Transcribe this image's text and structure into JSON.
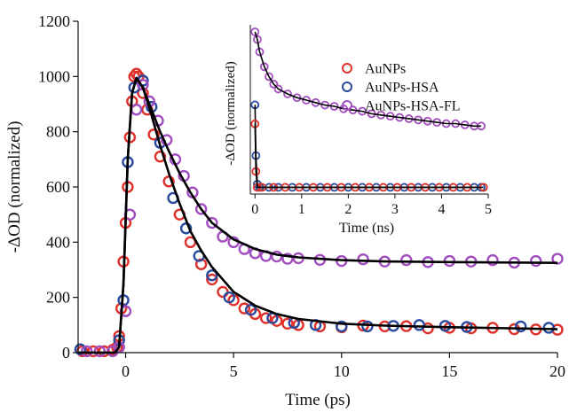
{
  "chart_data": [
    {
      "type": "scatter",
      "xlabel": "Time (ps)",
      "ylabel": "-ΔOD (normalized)",
      "xlim": [
        -2.2,
        20
      ],
      "ylim": [
        0,
        1200
      ],
      "x_ticks": [
        0,
        5,
        10,
        15,
        20
      ],
      "y_ticks": [
        0,
        200,
        400,
        600,
        800,
        1000,
        1200
      ],
      "grid": false,
      "series": [
        {
          "name": "AuNPs",
          "color": "#e0302a",
          "marker": "open-circle",
          "x": [
            -2.0,
            -1.5,
            -1.0,
            -0.6,
            -0.4,
            -0.3,
            -0.2,
            -0.1,
            0.0,
            0.1,
            0.2,
            0.3,
            0.4,
            0.5,
            0.6,
            0.8,
            1.0,
            1.3,
            1.6,
            2.0,
            2.5,
            3.0,
            3.5,
            4.0,
            4.5,
            5.0,
            5.5,
            6.0,
            6.5,
            7.0,
            7.5,
            8.0,
            9.0,
            10.0,
            11.0,
            12.0,
            13.0,
            14.0,
            15.0,
            16.0,
            17.0,
            18.0,
            19.0,
            20.0
          ],
          "y": [
            5,
            5,
            5,
            10,
            20,
            60,
            160,
            330,
            470,
            600,
            780,
            910,
            1000,
            1010,
            1000,
            940,
            880,
            790,
            710,
            620,
            500,
            400,
            320,
            265,
            220,
            190,
            160,
            140,
            125,
            115,
            105,
            100,
            95,
            92,
            98,
            95,
            96,
            88,
            90,
            88,
            90,
            85,
            84,
            83
          ]
        },
        {
          "name": "AuNPs-HSA",
          "color": "#2a4a9e",
          "marker": "open-circle",
          "x": [
            -2.1,
            -0.3,
            -0.1,
            0.1,
            0.4,
            0.8,
            1.2,
            1.6,
            2.2,
            2.8,
            3.4,
            4.0,
            4.8,
            5.8,
            6.8,
            7.8,
            8.8,
            10.0,
            11.2,
            12.4,
            13.6,
            14.8,
            15.8,
            18.3,
            19.6
          ],
          "y": [
            12,
            45,
            190,
            690,
            960,
            985,
            890,
            760,
            560,
            450,
            350,
            280,
            200,
            155,
            125,
            108,
            100,
            95,
            95,
            97,
            100,
            97,
            93,
            95,
            90
          ]
        },
        {
          "name": "AuNPs-HSA-FL",
          "color": "#a24dbf",
          "marker": "open-circle",
          "x": [
            -1.8,
            -1.2,
            -0.6,
            -0.3,
            0.0,
            0.2,
            0.5,
            0.8,
            1.1,
            1.5,
            1.9,
            2.3,
            2.7,
            3.1,
            3.5,
            4.0,
            4.5,
            5.0,
            5.5,
            6.0,
            6.5,
            7.0,
            7.5,
            8.0,
            9.0,
            10.0,
            11.0,
            12.0,
            13.0,
            14.0,
            15.0,
            16.0,
            17.0,
            18.0,
            19.0,
            20.0
          ],
          "y": [
            5,
            5,
            5,
            20,
            150,
            500,
            880,
            970,
            910,
            840,
            770,
            700,
            640,
            580,
            520,
            470,
            420,
            400,
            375,
            360,
            350,
            348,
            340,
            342,
            336,
            332,
            338,
            330,
            335,
            328,
            332,
            330,
            335,
            326,
            332,
            340
          ]
        },
        {
          "name": "fit",
          "color": "#000000",
          "line": true,
          "x": [
            -2.2,
            -0.5,
            -0.3,
            -0.1,
            0.1,
            0.3,
            0.5,
            0.8,
            1.2,
            1.6,
            2.0,
            2.5,
            3.0,
            3.5,
            4.0,
            5.0,
            6.0,
            7.0,
            8.0,
            10.0,
            12.0,
            15.0,
            20.0
          ],
          "y": [
            0,
            0,
            20,
            250,
            700,
            940,
            995,
            960,
            860,
            750,
            650,
            540,
            440,
            370,
            310,
            220,
            170,
            140,
            122,
            105,
            98,
            92,
            85
          ]
        },
        {
          "name": "fit",
          "color": "#000000",
          "line": true,
          "x": [
            -2.2,
            -0.5,
            -0.3,
            -0.1,
            0.1,
            0.3,
            0.5,
            0.8,
            1.2,
            1.6,
            2.0,
            2.5,
            3.0,
            3.5,
            4.0,
            5.0,
            6.0,
            7.0,
            8.0,
            10.0,
            12.0,
            15.0,
            20.0
          ],
          "y": [
            0,
            0,
            20,
            250,
            700,
            940,
            995,
            960,
            880,
            800,
            730,
            650,
            580,
            520,
            470,
            410,
            375,
            355,
            345,
            335,
            330,
            328,
            325
          ]
        }
      ]
    },
    {
      "type": "scatter",
      "xlabel": "Time (ns)",
      "ylabel": "-ΔOD (normalized)",
      "xlim": [
        -0.1,
        5
      ],
      "x_ticks": [
        0,
        1,
        2,
        3,
        4,
        5
      ],
      "legend": {
        "placement": "top-right",
        "entries": [
          "AuNPs",
          "AuNPs-HSA",
          "AuNPs-HSA-FL"
        ]
      },
      "series": [
        {
          "name": "AuNPs-HSA-FL",
          "color": "#a24dbf",
          "points": [
            [
              0.0,
              0.97
            ],
            [
              0.05,
              0.9
            ],
            [
              0.1,
              0.8
            ],
            [
              0.2,
              0.68
            ],
            [
              0.3,
              0.6
            ],
            [
              0.4,
              0.54
            ],
            [
              0.5,
              0.5
            ],
            [
              0.7,
              0.46
            ],
            [
              0.9,
              0.43
            ],
            [
              1.1,
              0.41
            ],
            [
              1.3,
              0.39
            ],
            [
              1.5,
              0.37
            ],
            [
              1.7,
              0.36
            ],
            [
              1.9,
              0.34
            ],
            [
              2.1,
              0.33
            ],
            [
              2.3,
              0.32
            ],
            [
              2.5,
              0.3
            ],
            [
              2.7,
              0.29
            ],
            [
              2.9,
              0.28
            ],
            [
              3.1,
              0.27
            ],
            [
              3.3,
              0.26
            ],
            [
              3.5,
              0.25
            ],
            [
              3.7,
              0.24
            ],
            [
              3.9,
              0.23
            ],
            [
              4.1,
              0.22
            ],
            [
              4.3,
              0.22
            ],
            [
              4.5,
              0.21
            ],
            [
              4.7,
              0.2
            ],
            [
              4.85,
              0.2
            ]
          ]
        },
        {
          "name": "AuNPs-HSA",
          "color": "#2a4a9e",
          "points": [
            [
              0.0,
              0.52
            ],
            [
              0.02,
              0.2
            ],
            [
              0.05,
              0.02
            ],
            [
              0.1,
              0.0
            ],
            [
              0.3,
              0.0
            ],
            [
              0.5,
              0.0
            ],
            [
              0.8,
              0.0
            ],
            [
              1.1,
              0.0
            ],
            [
              1.4,
              0.0
            ],
            [
              1.7,
              0.0
            ],
            [
              2.0,
              0.0
            ],
            [
              2.3,
              0.0
            ],
            [
              2.6,
              0.0
            ],
            [
              2.9,
              0.0
            ],
            [
              3.2,
              0.0
            ],
            [
              3.5,
              0.0
            ],
            [
              3.8,
              0.0
            ],
            [
              4.1,
              0.0
            ],
            [
              4.4,
              0.0
            ],
            [
              4.7,
              0.0
            ],
            [
              4.85,
              0.0
            ]
          ]
        },
        {
          "name": "AuNPs",
          "color": "#e0302a",
          "points": [
            [
              0.0,
              0.4
            ],
            [
              0.02,
              0.1
            ],
            [
              0.05,
              0.0
            ],
            [
              0.15,
              0.0
            ],
            [
              0.4,
              0.0
            ],
            [
              0.65,
              0.0
            ],
            [
              0.95,
              0.0
            ],
            [
              1.25,
              0.0
            ],
            [
              1.55,
              0.0
            ],
            [
              1.85,
              0.0
            ],
            [
              2.15,
              0.0
            ],
            [
              2.45,
              0.0
            ],
            [
              2.75,
              0.0
            ],
            [
              3.05,
              0.0
            ],
            [
              3.35,
              0.0
            ],
            [
              3.65,
              0.0
            ],
            [
              3.95,
              0.0
            ],
            [
              4.25,
              0.0
            ],
            [
              4.55,
              0.0
            ],
            [
              4.9,
              0.0
            ]
          ]
        }
      ]
    }
  ]
}
